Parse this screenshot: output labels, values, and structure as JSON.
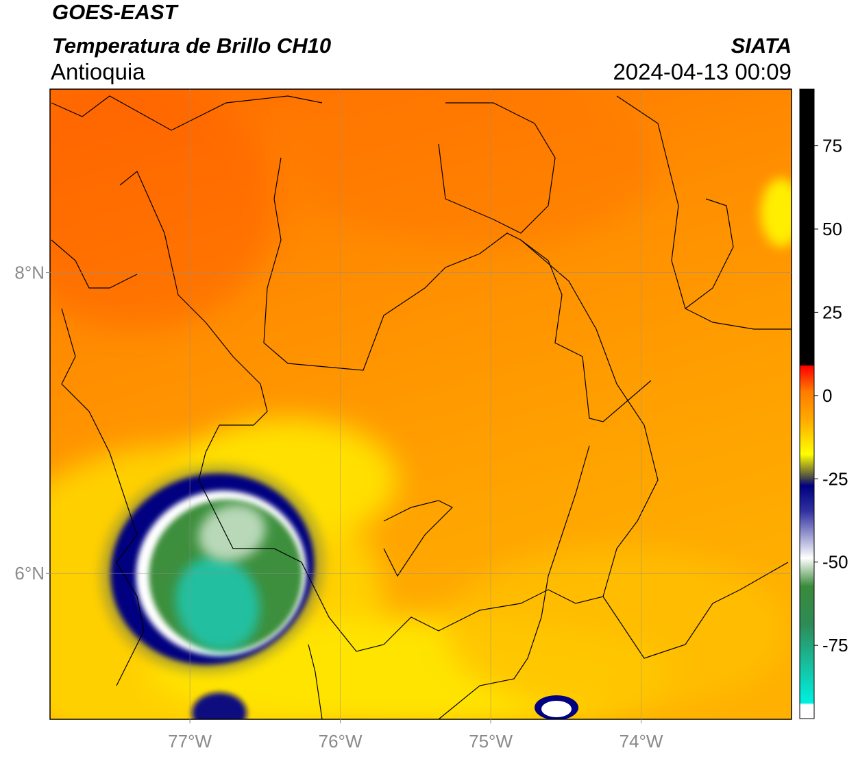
{
  "header": {
    "title": "GOES-EAST",
    "subtitle": "Temperatura de Brillo CH10",
    "region": "Antioquia",
    "source": "SIATA",
    "timestamp": "2024-04-13 00:09"
  },
  "map": {
    "xlim": [
      -77.93,
      -73.0
    ],
    "ylim": [
      5.03,
      9.22
    ],
    "xticks": [
      {
        "value": -77,
        "label": "77°W"
      },
      {
        "value": -76,
        "label": "76°W"
      },
      {
        "value": -75,
        "label": "75°W"
      },
      {
        "value": -74,
        "label": "74°W"
      }
    ],
    "yticks": [
      {
        "value": 8,
        "label": "8°N"
      },
      {
        "value": 6,
        "label": "6°N"
      }
    ]
  },
  "colorbar": {
    "lim": [
      -97,
      92
    ],
    "ticks": [
      75,
      50,
      25,
      0,
      -25,
      -50,
      -75
    ]
  }
}
